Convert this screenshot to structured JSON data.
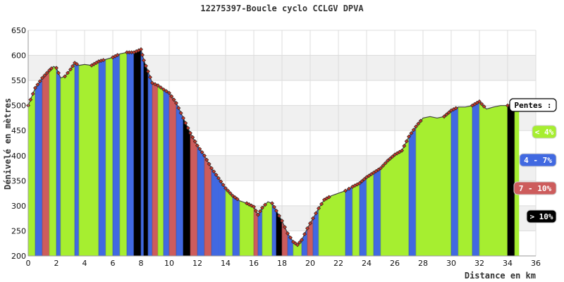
{
  "chart_data": {
    "type": "area",
    "title": "12275397-Boucle cyclo CCLGV DPVA",
    "xlabel": "Distance en km",
    "ylabel": "Dénivelé en mètres",
    "xlim": [
      0,
      36
    ],
    "ylim": [
      200,
      650
    ],
    "xticks": [
      0,
      2,
      4,
      6,
      8,
      10,
      12,
      14,
      16,
      18,
      20,
      22,
      24,
      26,
      28,
      30,
      32,
      34,
      36
    ],
    "yticks": [
      200,
      250,
      300,
      350,
      400,
      450,
      500,
      550,
      600,
      650
    ],
    "grid": true,
    "legend_title": "Pentes :",
    "legend_placement": "right",
    "legend": [
      {
        "label": "< 4%",
        "color": "#a6ee30",
        "text_color": "#ffffff"
      },
      {
        "label": "4 - 7%",
        "color": "#4169e1",
        "text_color": "#ffffff"
      },
      {
        "label": "7 - 10%",
        "color": "#cd5c5c",
        "text_color": "#ffffff"
      },
      {
        "label": "> 10%",
        "color": "#000000",
        "text_color": "#ffffff"
      }
    ],
    "x": [
      0,
      0.5,
      1,
      1.5,
      1.8,
      2.0,
      2.3,
      2.6,
      3.0,
      3.3,
      3.6,
      4.0,
      4.5,
      5.0,
      5.5,
      6.0,
      6.5,
      7.0,
      7.5,
      8.0,
      8.2,
      8.5,
      8.8,
      9.2,
      9.6,
      10.0,
      10.5,
      11.0,
      11.5,
      12.0,
      12.5,
      13.0,
      13.5,
      14.0,
      14.5,
      15.0,
      15.5,
      16.0,
      16.3,
      16.6,
      17.0,
      17.3,
      17.6,
      18.0,
      18.4,
      18.8,
      19.1,
      19.4,
      19.8,
      20.2,
      20.6,
      21.0,
      21.5,
      22.0,
      22.5,
      23.0,
      23.5,
      24.0,
      24.5,
      25.0,
      25.5,
      26.0,
      26.5,
      27.0,
      27.5,
      28.0,
      28.5,
      29.0,
      29.5,
      30.0,
      30.5,
      31.0,
      31.5,
      32.0,
      32.5,
      33.0,
      33.5,
      34.0,
      34.5,
      34.8
    ],
    "y": [
      500,
      535,
      555,
      570,
      578,
      575,
      555,
      558,
      572,
      585,
      580,
      582,
      580,
      588,
      592,
      596,
      603,
      606,
      606,
      612,
      590,
      568,
      545,
      540,
      532,
      525,
      505,
      475,
      445,
      420,
      400,
      375,
      355,
      335,
      320,
      310,
      305,
      298,
      282,
      296,
      308,
      305,
      290,
      270,
      245,
      228,
      222,
      232,
      255,
      275,
      295,
      312,
      320,
      325,
      330,
      338,
      345,
      357,
      366,
      375,
      390,
      402,
      410,
      438,
      458,
      475,
      478,
      475,
      478,
      490,
      497,
      497,
      500,
      508,
      493,
      497,
      500,
      500,
      500,
      500
    ],
    "segment_classes": [
      "<4",
      "4-7",
      "7-10",
      "<4",
      "<4",
      "4-7",
      "<4",
      "<4",
      "<4",
      "4-7",
      "<4",
      "<4",
      "<4",
      "4-7",
      "<4",
      "4-7",
      "<4",
      "4-7",
      ">10",
      "4-7",
      ">10",
      "4-7",
      "7-10",
      "<4",
      "4-7",
      "7-10",
      "4-7",
      ">10",
      "7-10",
      "4-7",
      "7-10",
      "4-7",
      "4-7",
      "<4",
      "4-7",
      "<4",
      "<4",
      "7-10",
      "4-7",
      "<4",
      "<4",
      "4-7",
      ">10",
      "7-10",
      "4-7",
      "<4",
      "<4",
      "4-7",
      "7-10",
      "4-7",
      "<4",
      "<4",
      "<4",
      "<4",
      "4-7",
      "<4",
      "4-7",
      "<4",
      "4-7",
      "<4",
      "<4",
      "<4",
      "<4",
      "4-7",
      "<4",
      "<4",
      "<4",
      "<4",
      "<4",
      "4-7",
      "<4",
      "<4",
      "4-7",
      "<4",
      "<4",
      "<4",
      "<4",
      ">10",
      "<4"
    ]
  }
}
